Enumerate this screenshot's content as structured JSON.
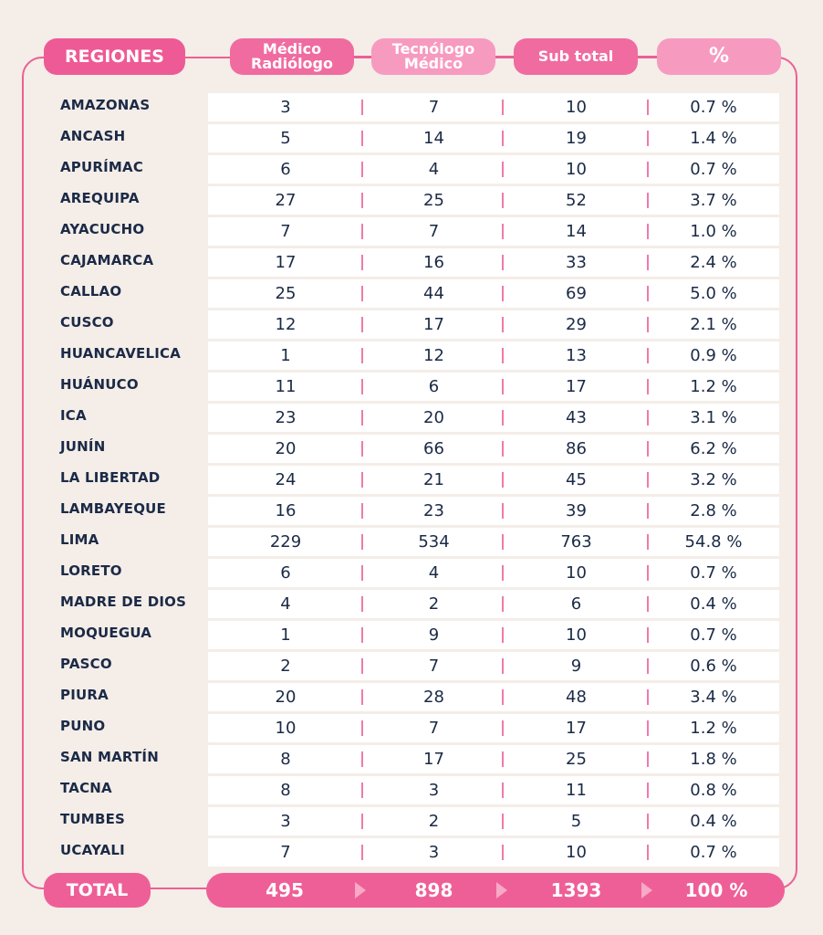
{
  "header": {
    "regiones": "REGIONES",
    "col1_line1": "Médico",
    "col1_line2": "Radiólogo",
    "col2_line1": "Tecnólogo",
    "col2_line2": "Médico",
    "col3": "Sub total",
    "col4": "%"
  },
  "rows": [
    {
      "region": "AMAZONAS",
      "medico": "3",
      "tecnologo": "7",
      "subtotal": "10",
      "pct": "0.7 %"
    },
    {
      "region": "ANCASH",
      "medico": "5",
      "tecnologo": "14",
      "subtotal": "19",
      "pct": "1.4 %"
    },
    {
      "region": "APURÍMAC",
      "medico": "6",
      "tecnologo": "4",
      "subtotal": "10",
      "pct": "0.7 %"
    },
    {
      "region": "AREQUIPA",
      "medico": "27",
      "tecnologo": "25",
      "subtotal": "52",
      "pct": "3.7 %"
    },
    {
      "region": "AYACUCHO",
      "medico": "7",
      "tecnologo": "7",
      "subtotal": "14",
      "pct": "1.0 %"
    },
    {
      "region": "CAJAMARCA",
      "medico": "17",
      "tecnologo": "16",
      "subtotal": "33",
      "pct": "2.4 %"
    },
    {
      "region": "CALLAO",
      "medico": "25",
      "tecnologo": "44",
      "subtotal": "69",
      "pct": "5.0 %"
    },
    {
      "region": "CUSCO",
      "medico": "12",
      "tecnologo": "17",
      "subtotal": "29",
      "pct": "2.1 %"
    },
    {
      "region": "HUANCAVELICA",
      "medico": "1",
      "tecnologo": "12",
      "subtotal": "13",
      "pct": "0.9 %"
    },
    {
      "region": "HUÁNUCO",
      "medico": "11",
      "tecnologo": "6",
      "subtotal": "17",
      "pct": "1.2 %"
    },
    {
      "region": "ICA",
      "medico": "23",
      "tecnologo": "20",
      "subtotal": "43",
      "pct": "3.1 %"
    },
    {
      "region": "JUNÍN",
      "medico": "20",
      "tecnologo": "66",
      "subtotal": "86",
      "pct": "6.2 %"
    },
    {
      "region": "LA LIBERTAD",
      "medico": "24",
      "tecnologo": "21",
      "subtotal": "45",
      "pct": "3.2 %"
    },
    {
      "region": "LAMBAYEQUE",
      "medico": "16",
      "tecnologo": "23",
      "subtotal": "39",
      "pct": "2.8 %"
    },
    {
      "region": "LIMA",
      "medico": "229",
      "tecnologo": "534",
      "subtotal": "763",
      "pct": "54.8 %"
    },
    {
      "region": "LORETO",
      "medico": "6",
      "tecnologo": "4",
      "subtotal": "10",
      "pct": "0.7 %"
    },
    {
      "region": "MADRE DE DIOS",
      "medico": "4",
      "tecnologo": "2",
      "subtotal": "6",
      "pct": "0.4 %"
    },
    {
      "region": "MOQUEGUA",
      "medico": "1",
      "tecnologo": "9",
      "subtotal": "10",
      "pct": "0.7 %"
    },
    {
      "region": "PASCO",
      "medico": "2",
      "tecnologo": "7",
      "subtotal": "9",
      "pct": "0.6 %"
    },
    {
      "region": "PIURA",
      "medico": "20",
      "tecnologo": "28",
      "subtotal": "48",
      "pct": "3.4 %"
    },
    {
      "region": "PUNO",
      "medico": "10",
      "tecnologo": "7",
      "subtotal": "17",
      "pct": "1.2 %"
    },
    {
      "region": "SAN MARTÍN",
      "medico": "8",
      "tecnologo": "17",
      "subtotal": "25",
      "pct": "1.8 %"
    },
    {
      "region": "TACNA",
      "medico": "8",
      "tecnologo": "3",
      "subtotal": "11",
      "pct": "0.8 %"
    },
    {
      "region": "TUMBES",
      "medico": "3",
      "tecnologo": "2",
      "subtotal": "5",
      "pct": "0.4 %"
    },
    {
      "region": "UCAYALI",
      "medico": "7",
      "tecnologo": "3",
      "subtotal": "10",
      "pct": "0.7 %"
    }
  ],
  "total": {
    "label": "TOTAL",
    "medico": "495",
    "tecnologo": "898",
    "subtotal": "1393",
    "pct": "100 %"
  },
  "colors": {
    "pink_primary": "#ef5f97",
    "pink_light": "#f79ac0",
    "text_dark": "#1b2a46",
    "background": "#f4ede8"
  },
  "chart_data": {
    "type": "table",
    "title": "",
    "columns": [
      "REGIONES",
      "Médico Radiólogo",
      "Tecnólogo Médico",
      "Sub total",
      "%"
    ],
    "categories": [
      "AMAZONAS",
      "ANCASH",
      "APURÍMAC",
      "AREQUIPA",
      "AYACUCHO",
      "CAJAMARCA",
      "CALLAO",
      "CUSCO",
      "HUANCAVELICA",
      "HUÁNUCO",
      "ICA",
      "JUNÍN",
      "LA LIBERTAD",
      "LAMBAYEQUE",
      "LIMA",
      "LORETO",
      "MADRE DE DIOS",
      "MOQUEGUA",
      "PASCO",
      "PIURA",
      "PUNO",
      "SAN MARTÍN",
      "TACNA",
      "TUMBES",
      "UCAYALI"
    ],
    "series": [
      {
        "name": "Médico Radiólogo",
        "values": [
          3,
          5,
          6,
          27,
          7,
          17,
          25,
          12,
          1,
          11,
          23,
          20,
          24,
          16,
          229,
          6,
          4,
          1,
          2,
          20,
          10,
          8,
          8,
          3,
          7
        ]
      },
      {
        "name": "Tecnólogo Médico",
        "values": [
          7,
          14,
          4,
          25,
          7,
          16,
          44,
          17,
          12,
          6,
          20,
          66,
          21,
          23,
          534,
          4,
          2,
          9,
          7,
          28,
          7,
          17,
          3,
          2,
          3
        ]
      },
      {
        "name": "Sub total",
        "values": [
          10,
          19,
          10,
          52,
          14,
          33,
          69,
          29,
          13,
          17,
          43,
          86,
          45,
          39,
          763,
          10,
          6,
          10,
          9,
          48,
          17,
          25,
          11,
          5,
          10
        ]
      },
      {
        "name": "%",
        "values": [
          0.7,
          1.4,
          0.7,
          3.7,
          1.0,
          2.4,
          5.0,
          2.1,
          0.9,
          1.2,
          3.1,
          6.2,
          3.2,
          2.8,
          54.8,
          0.7,
          0.4,
          0.7,
          0.6,
          3.4,
          1.2,
          1.8,
          0.8,
          0.4,
          0.7
        ]
      }
    ],
    "totals": {
      "Médico Radiólogo": 495,
      "Tecnólogo Médico": 898,
      "Sub total": 1393,
      "%": 100
    }
  }
}
